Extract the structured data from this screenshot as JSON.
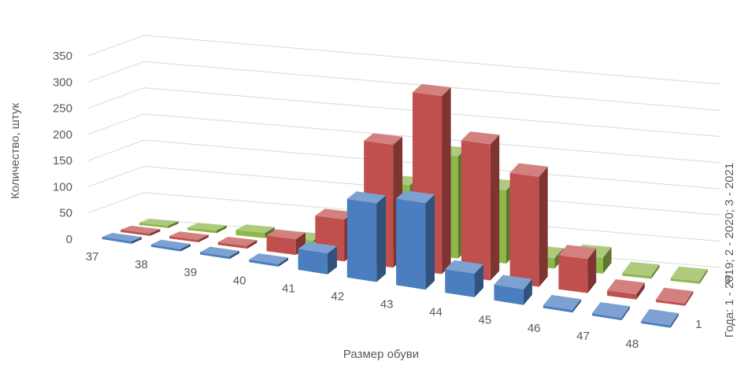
{
  "chart_data": {
    "type": "bar",
    "subtype": "3d-column",
    "xlabel": "Размер обуви",
    "ylabel": "Количество, штук",
    "zlabel": "Года: 1 - 2019; 2 - 2020; 3 - 2021",
    "ylim": [
      0,
      350
    ],
    "yticks": [
      0,
      50,
      100,
      150,
      200,
      250,
      300,
      350
    ],
    "grid": true,
    "categories": [
      "37",
      "38",
      "39",
      "40",
      "41",
      "42",
      "43",
      "44",
      "45",
      "46",
      "47",
      "48"
    ],
    "depth_tick_labels": [
      "1",
      "3"
    ],
    "series": [
      {
        "depth_index": 1,
        "color": "#4a7ebf",
        "values": [
          2,
          2,
          3,
          5,
          40,
          150,
          165,
          45,
          30,
          5,
          3,
          2
        ]
      },
      {
        "depth_index": 2,
        "color": "#c0504d",
        "values": [
          2,
          3,
          5,
          30,
          80,
          235,
          340,
          260,
          210,
          65,
          10,
          4
        ]
      },
      {
        "depth_index": 3,
        "color": "#8fb74b",
        "values": [
          3,
          5,
          10,
          5,
          45,
          130,
          195,
          140,
          20,
          30,
          5,
          2
        ]
      }
    ]
  }
}
